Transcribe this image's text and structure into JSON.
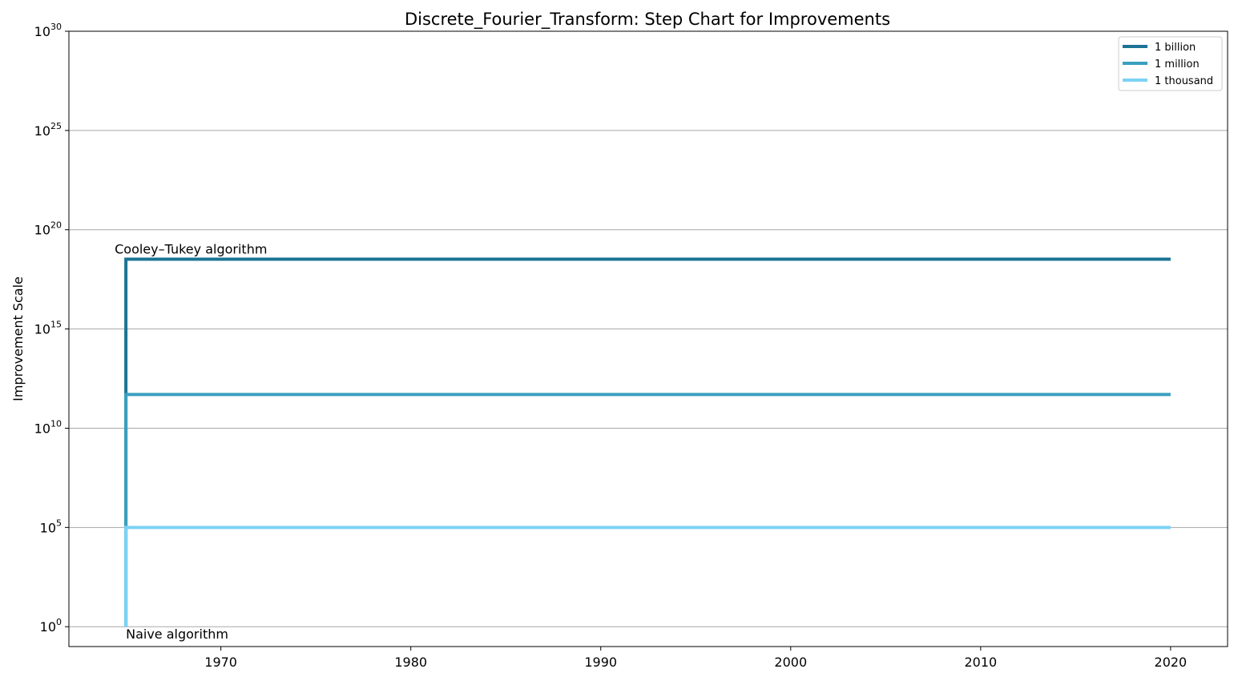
{
  "chart_data": {
    "type": "line",
    "subtype": "step",
    "title": "Discrete_Fourier_Transform: Step Chart for Improvements",
    "xlabel": "",
    "ylabel": "Improvement Scale",
    "y_scale": "log",
    "xlim": [
      1962,
      2023
    ],
    "ylim": [
      0.1,
      1e+30
    ],
    "x_ticks": [
      1970,
      1980,
      1990,
      2000,
      2010,
      2020
    ],
    "x_tick_labels": [
      "1970",
      "1980",
      "1990",
      "2000",
      "2010",
      "2020"
    ],
    "y_ticks": [
      1,
      100000.0,
      10000000000.0,
      1000000000000000.0,
      1e+20,
      1e+25,
      1e+30
    ],
    "y_tick_labels": [
      {
        "base": "10",
        "exp": "0"
      },
      {
        "base": "10",
        "exp": "5"
      },
      {
        "base": "10",
        "exp": "10"
      },
      {
        "base": "10",
        "exp": "15"
      },
      {
        "base": "10",
        "exp": "20"
      },
      {
        "base": "10",
        "exp": "25"
      },
      {
        "base": "10",
        "exp": "30"
      }
    ],
    "grid": "horizontal",
    "legend_position": "top-right",
    "series": [
      {
        "name": "1 billion",
        "color": "#1b7394",
        "x": [
          1965,
          1965,
          2020
        ],
        "y": [
          1,
          3.3e+18,
          3.3e+18
        ]
      },
      {
        "name": "1 million",
        "color": "#3a9fbf",
        "x": [
          1965,
          1965,
          2020
        ],
        "y": [
          1,
          500000000000.0,
          500000000000.0
        ]
      },
      {
        "name": "1 thousand",
        "color": "#7dd3f5",
        "x": [
          1965,
          1965,
          2020
        ],
        "y": [
          1,
          100000.0,
          100000.0
        ]
      }
    ],
    "annotations": [
      {
        "text": "Cooley–Tukey algorithm",
        "x": 1965,
        "y": 3.3e+18,
        "placement": "above"
      },
      {
        "text": "Naive algorithm",
        "x": 1965,
        "y": 1,
        "placement": "below"
      }
    ]
  }
}
